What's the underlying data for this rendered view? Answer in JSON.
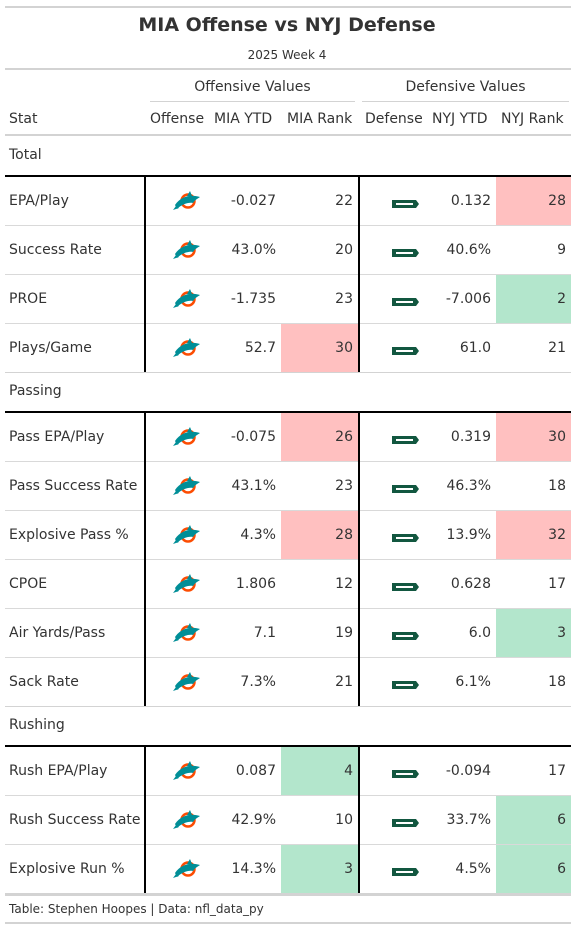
{
  "title": "MIA Offense vs NYJ Defense",
  "subtitle": "2025 Week 4",
  "spanners": {
    "offense": "Offensive Values",
    "defense": "Defensive Values"
  },
  "columns": {
    "stat": "Stat",
    "offense": "Offense",
    "off_ytd": "MIA YTD",
    "off_rank": "MIA Rank",
    "defense": "Defense",
    "def_ytd": "NYJ YTD",
    "def_rank": "NYJ Rank"
  },
  "logos": {
    "offense": "dolphins-logo",
    "defense": "jets-logo"
  },
  "colors": {
    "bad_rank": "#ffc0c0",
    "good_rank": "#b3e6cc",
    "dolphins_aqua": "#008e97",
    "dolphins_orange": "#fc4c02",
    "jets_green": "#125740"
  },
  "groups": [
    {
      "label": "Total",
      "rows": [
        {
          "stat": "EPA/Play",
          "off_ytd": "-0.027",
          "off_rank": "22",
          "off_shade": "",
          "def_ytd": "0.132",
          "def_rank": "28",
          "def_shade": "red"
        },
        {
          "stat": "Success Rate",
          "off_ytd": "43.0%",
          "off_rank": "20",
          "off_shade": "",
          "def_ytd": "40.6%",
          "def_rank": "9",
          "def_shade": ""
        },
        {
          "stat": "PROE",
          "off_ytd": "-1.735",
          "off_rank": "23",
          "off_shade": "",
          "def_ytd": "-7.006",
          "def_rank": "2",
          "def_shade": "green"
        },
        {
          "stat": "Plays/Game",
          "off_ytd": "52.7",
          "off_rank": "30",
          "off_shade": "red",
          "def_ytd": "61.0",
          "def_rank": "21",
          "def_shade": ""
        }
      ]
    },
    {
      "label": "Passing",
      "rows": [
        {
          "stat": "Pass EPA/Play",
          "off_ytd": "-0.075",
          "off_rank": "26",
          "off_shade": "red",
          "def_ytd": "0.319",
          "def_rank": "30",
          "def_shade": "red"
        },
        {
          "stat": "Pass Success Rate",
          "off_ytd": "43.1%",
          "off_rank": "23",
          "off_shade": "",
          "def_ytd": "46.3%",
          "def_rank": "18",
          "def_shade": ""
        },
        {
          "stat": "Explosive Pass %",
          "off_ytd": "4.3%",
          "off_rank": "28",
          "off_shade": "red",
          "def_ytd": "13.9%",
          "def_rank": "32",
          "def_shade": "red"
        },
        {
          "stat": "CPOE",
          "off_ytd": "1.806",
          "off_rank": "12",
          "off_shade": "",
          "def_ytd": "0.628",
          "def_rank": "17",
          "def_shade": ""
        },
        {
          "stat": "Air Yards/Pass",
          "off_ytd": "7.1",
          "off_rank": "19",
          "off_shade": "",
          "def_ytd": "6.0",
          "def_rank": "3",
          "def_shade": "green"
        },
        {
          "stat": "Sack Rate",
          "off_ytd": "7.3%",
          "off_rank": "21",
          "off_shade": "",
          "def_ytd": "6.1%",
          "def_rank": "18",
          "def_shade": ""
        }
      ]
    },
    {
      "label": "Rushing",
      "rows": [
        {
          "stat": "Rush EPA/Play",
          "off_ytd": "0.087",
          "off_rank": "4",
          "off_shade": "green",
          "def_ytd": "-0.094",
          "def_rank": "17",
          "def_shade": ""
        },
        {
          "stat": "Rush Success Rate",
          "off_ytd": "42.9%",
          "off_rank": "10",
          "off_shade": "",
          "def_ytd": "33.7%",
          "def_rank": "6",
          "def_shade": "green"
        },
        {
          "stat": "Explosive Run %",
          "off_ytd": "14.3%",
          "off_rank": "3",
          "off_shade": "green",
          "def_ytd": "4.5%",
          "def_rank": "6",
          "def_shade": "green"
        }
      ]
    }
  ],
  "footer": "Table: Stephen Hoopes | Data: nfl_data_py"
}
